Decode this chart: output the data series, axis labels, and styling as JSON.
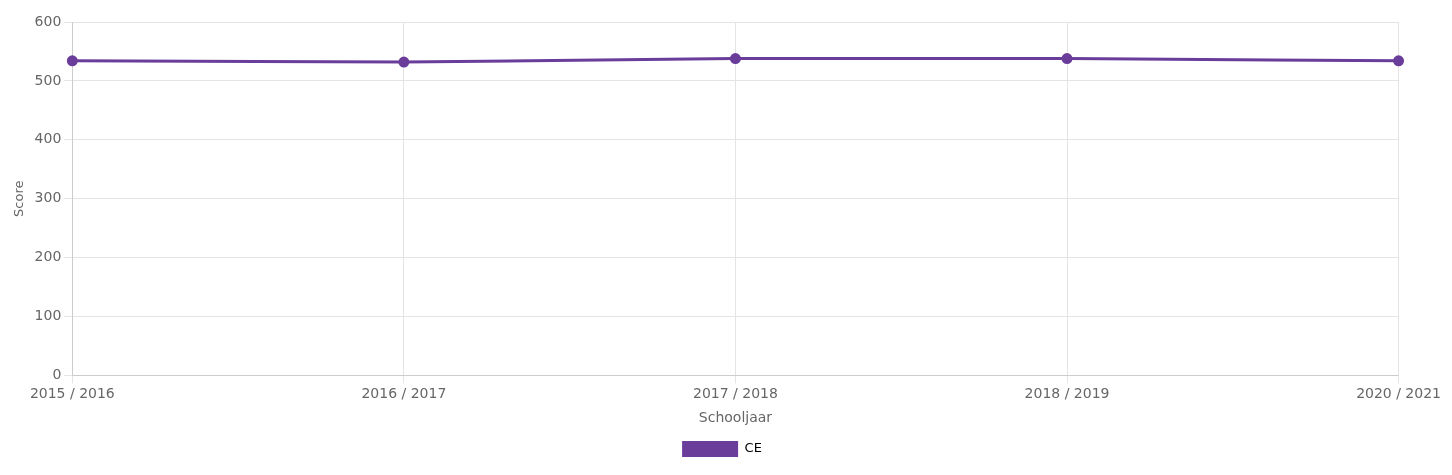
{
  "chart_data": {
    "type": "line",
    "xlabel": "Schooljaar",
    "ylabel": "Score",
    "categories": [
      "2015 / 2016",
      "2016 / 2017",
      "2017 / 2018",
      "2018 / 2019",
      "2020 / 2021"
    ],
    "series": [
      {
        "name": "CE",
        "color": "#6a3d9a",
        "values": [
          534,
          532,
          538,
          538,
          534
        ]
      }
    ],
    "ylim": [
      0,
      600
    ],
    "yticks": [
      0,
      100,
      200,
      300,
      400,
      500,
      600
    ],
    "grid": true,
    "legend": "bottom",
    "marker": "circle",
    "line_style": "solid"
  }
}
